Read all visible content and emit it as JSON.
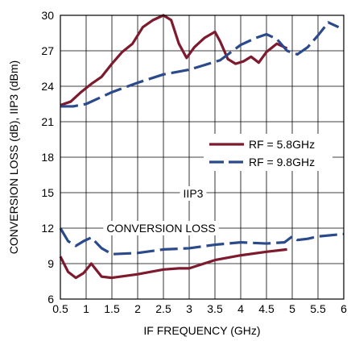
{
  "chart_data": {
    "type": "line",
    "title": "",
    "xlabel": "IF FREQUENCY (GHz)",
    "ylabel": "CONVERSION LOSS (dB), IIP3 (dBm)",
    "xlim": [
      0.5,
      6
    ],
    "ylim": [
      6,
      30
    ],
    "xticks": [
      0.5,
      1,
      1.5,
      2,
      2.5,
      3,
      3.5,
      4,
      4.5,
      5,
      5.5,
      6
    ],
    "xtick_labels": [
      "0.5",
      "1",
      "1.5",
      "2",
      "2.5",
      "3",
      "3.5",
      "4",
      "4.5",
      "5",
      "5.5",
      "6"
    ],
    "yticks": [
      6,
      9,
      12,
      15,
      18,
      21,
      24,
      27,
      30
    ],
    "ytick_labels": [
      "6",
      "9",
      "12",
      "15",
      "18",
      "21",
      "24",
      "27",
      "30"
    ],
    "grid": true,
    "legend_position": "right-middle",
    "series": [
      {
        "name": "RF = 5.8GHz",
        "group": "IIP3",
        "color": "#7d1a2e",
        "dash": "solid",
        "x": [
          0.5,
          0.7,
          0.9,
          1.1,
          1.3,
          1.5,
          1.7,
          1.9,
          2.1,
          2.3,
          2.5,
          2.65,
          2.8,
          2.95,
          3.1,
          3.3,
          3.5,
          3.6,
          3.75,
          3.9,
          4.05,
          4.2,
          4.35,
          4.5,
          4.7,
          4.9
        ],
        "y": [
          22.4,
          22.7,
          23.5,
          24.2,
          24.8,
          25.9,
          26.9,
          27.6,
          29.0,
          29.6,
          30.0,
          29.6,
          27.6,
          26.4,
          27.3,
          28.1,
          28.6,
          27.8,
          26.3,
          25.9,
          26.1,
          26.5,
          26.0,
          26.9,
          27.6,
          27.2
        ]
      },
      {
        "name": "RF = 9.8GHz",
        "group": "IIP3",
        "color": "#2b4a8c",
        "dash": "long-dash",
        "x": [
          0.5,
          0.75,
          1.0,
          1.25,
          1.5,
          2.0,
          2.5,
          3.0,
          3.3,
          3.6,
          4.0,
          4.3,
          4.5,
          4.7,
          4.9,
          5.1,
          5.3,
          5.5,
          5.7,
          5.9
        ],
        "y": [
          22.3,
          22.3,
          22.5,
          23.0,
          23.5,
          24.3,
          25.0,
          25.4,
          25.8,
          26.2,
          27.5,
          28.1,
          28.4,
          28.0,
          27.0,
          26.7,
          27.3,
          28.3,
          29.4,
          29.0
        ]
      },
      {
        "name": "RF = 5.8GHz",
        "group": "CONVERSION LOSS",
        "color": "#7d1a2e",
        "dash": "solid",
        "x": [
          0.5,
          0.65,
          0.8,
          0.95,
          1.1,
          1.3,
          1.5,
          2.0,
          2.5,
          2.8,
          3.0,
          3.5,
          4.0,
          4.5,
          4.9
        ],
        "y": [
          9.6,
          8.3,
          7.8,
          8.2,
          9.0,
          7.9,
          7.8,
          8.1,
          8.5,
          8.6,
          8.6,
          9.3,
          9.7,
          10.0,
          10.2
        ]
      },
      {
        "name": "RF = 9.8GHz",
        "group": "CONVERSION LOSS",
        "color": "#2b4a8c",
        "dash": "long-dash",
        "x": [
          0.5,
          0.65,
          0.8,
          0.95,
          1.1,
          1.3,
          1.5,
          2.0,
          2.5,
          3.0,
          3.5,
          4.0,
          4.5,
          4.85,
          5.0,
          5.1,
          5.3,
          5.5,
          6.0
        ],
        "y": [
          12.0,
          10.9,
          10.5,
          10.9,
          11.2,
          10.3,
          9.8,
          9.9,
          10.2,
          10.3,
          10.6,
          10.8,
          10.7,
          10.8,
          11.3,
          11.0,
          11.1,
          11.3,
          11.5
        ]
      }
    ],
    "annotations": [
      {
        "text": "IIP3",
        "group": "IIP3"
      },
      {
        "text": "CONVERSION LOSS",
        "group": "CONVERSION LOSS"
      }
    ],
    "legend": [
      {
        "label": "RF = 5.8GHz",
        "color": "#7d1a2e",
        "dash": "solid"
      },
      {
        "label": "RF = 9.8GHz",
        "color": "#2b4a8c",
        "dash": "long-dash"
      }
    ]
  }
}
